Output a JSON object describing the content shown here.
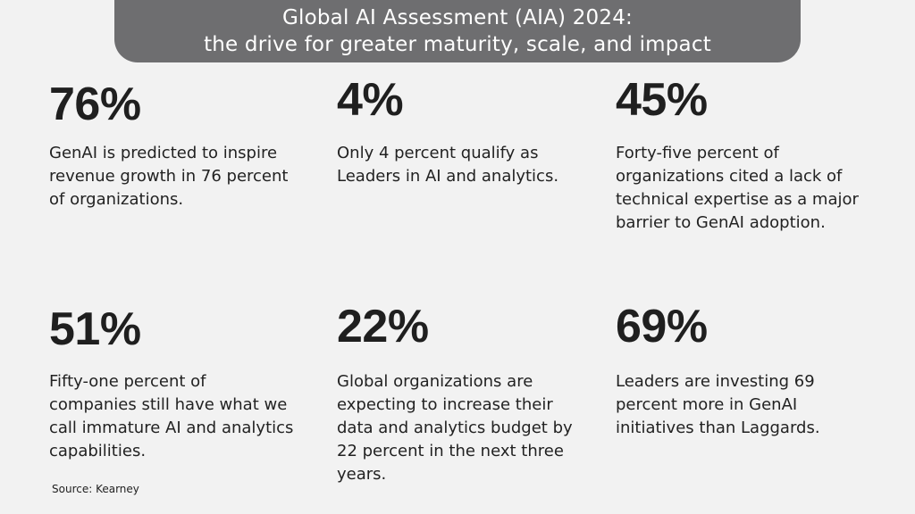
{
  "header": {
    "title_line1": "Global AI Assessment (AIA) 2024:",
    "title_line2": "the drive for greater maturity, scale, and impact"
  },
  "stats": [
    {
      "value": "76%",
      "description_lines": [
        "GenAI is predicted to inspire",
        "revenue growth in 76 percent",
        "of organizations."
      ]
    },
    {
      "value": "4%",
      "description_lines": [
        "Only 4 percent qualify as",
        "Leaders in AI and analytics."
      ]
    },
    {
      "value": "45%",
      "description_lines": [
        "Forty-five percent of",
        "organizations cited a lack of",
        "technical expertise as a major",
        "barrier to GenAI adoption."
      ]
    },
    {
      "value": "51%",
      "description_lines": [
        "Fifty-one percent of",
        "companies still have what we",
        "call immature AI and analytics",
        "capabilities."
      ]
    },
    {
      "value": "22%",
      "description_lines": [
        "Global organizations are",
        "expecting to increase their",
        "data and analytics budget by",
        "22 percent in the next three",
        "years."
      ]
    },
    {
      "value": "69%",
      "description_lines": [
        "Leaders are investing 69",
        "percent more in GenAI",
        "initiatives than Laggards."
      ]
    }
  ],
  "footer": {
    "source": "Source: Kearney"
  },
  "colors": {
    "background": "#f2f2f2",
    "banner": "#6e6e70",
    "text": "#1f1f1f"
  }
}
